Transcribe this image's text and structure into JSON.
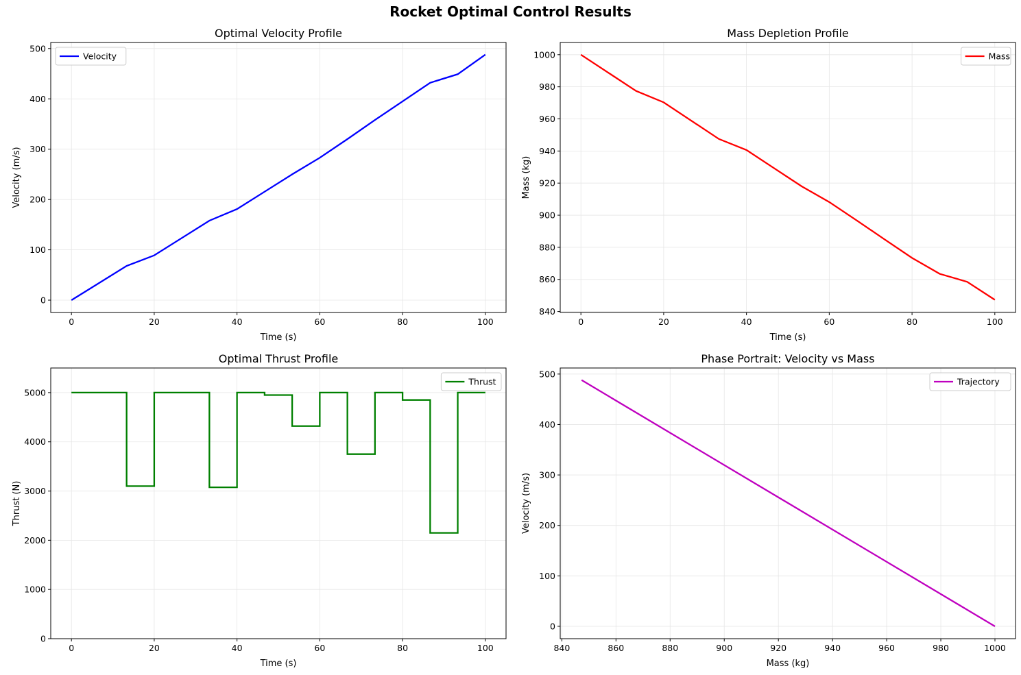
{
  "figure_title": "Rocket Optimal Control Results",
  "chart_data": [
    {
      "type": "line",
      "title": "Optimal Velocity Profile",
      "xlabel": "Time (s)",
      "ylabel": "Velocity (m/s)",
      "xlim": [
        -5,
        105
      ],
      "ylim": [
        -24.5,
        512
      ],
      "xticks": [
        0,
        20,
        40,
        60,
        80,
        100
      ],
      "yticks": [
        0,
        100,
        200,
        300,
        400,
        500
      ],
      "grid": true,
      "legend_position": "upper-left",
      "series": [
        {
          "name": "Velocity",
          "color": "#0000ff",
          "x": [
            0,
            13.33,
            20,
            33.33,
            40,
            53.33,
            60,
            66.67,
            73.33,
            80,
            86.67,
            93.33,
            100
          ],
          "y": [
            0,
            68,
            89,
            158,
            181,
            250,
            283,
            320,
            358,
            395,
            432,
            449,
            488
          ]
        }
      ]
    },
    {
      "type": "line",
      "title": "Mass Depletion Profile",
      "xlabel": "Time (s)",
      "ylabel": "Mass (kg)",
      "xlim": [
        -5,
        105
      ],
      "ylim": [
        839.4,
        1007.6
      ],
      "xticks": [
        0,
        20,
        40,
        60,
        80,
        100
      ],
      "yticks": [
        840,
        860,
        880,
        900,
        920,
        940,
        960,
        980,
        1000
      ],
      "grid": true,
      "legend_position": "upper-right",
      "series": [
        {
          "name": "Mass",
          "color": "#ff0000",
          "x": [
            0,
            13.33,
            20,
            33.33,
            40,
            46.67,
            53.33,
            60,
            66.67,
            73.33,
            80,
            86.67,
            93.33,
            100
          ],
          "y": [
            1000,
            977.4,
            970.3,
            947.5,
            940.6,
            929.3,
            918.0,
            908.2,
            896.7,
            885.0,
            873.4,
            863.5,
            858.5,
            847.3
          ]
        }
      ]
    },
    {
      "type": "line",
      "title": "Optimal Thrust Profile",
      "xlabel": "Time (s)",
      "ylabel": "Thrust (N)",
      "xlim": [
        -5,
        105
      ],
      "ylim": [
        0,
        5500
      ],
      "xticks": [
        0,
        20,
        40,
        60,
        80,
        100
      ],
      "yticks": [
        0,
        1000,
        2000,
        3000,
        4000,
        5000
      ],
      "grid": true,
      "legend_position": "upper-right",
      "series": [
        {
          "name": "Thrust",
          "color": "#008000",
          "step": true,
          "x": [
            0,
            13.33,
            20,
            33.33,
            40,
            46.67,
            53.33,
            60,
            66.67,
            73.33,
            80,
            86.67,
            93.33,
            100
          ],
          "y": [
            5000,
            3100,
            5000,
            3075,
            5000,
            4950,
            4320,
            5000,
            3750,
            5000,
            4850,
            2150,
            5000,
            5000
          ]
        }
      ]
    },
    {
      "type": "line",
      "title": "Phase Portrait: Velocity vs Mass",
      "xlabel": "Mass (kg)",
      "ylabel": "Velocity (m/s)",
      "xlim": [
        839.4,
        1007.6
      ],
      "ylim": [
        -24.5,
        512
      ],
      "xticks": [
        840,
        860,
        880,
        900,
        920,
        940,
        960,
        980,
        1000
      ],
      "yticks": [
        0,
        100,
        200,
        300,
        400,
        500
      ],
      "grid": true,
      "legend_position": "upper-right",
      "series": [
        {
          "name": "Trajectory",
          "color": "#bf00bf",
          "x": [
            1000,
            847.3
          ],
          "y": [
            0,
            488
          ]
        }
      ]
    }
  ]
}
